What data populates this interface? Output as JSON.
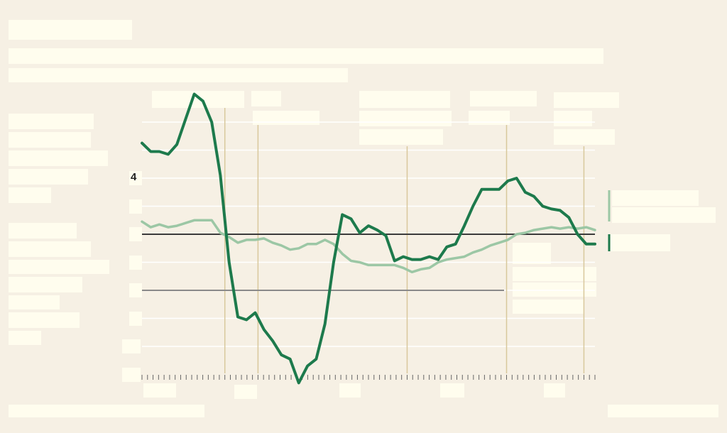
{
  "chart_data": {
    "type": "line",
    "yticks_visible": [
      {
        "value": 4,
        "label": "4"
      }
    ],
    "ylim": [
      -4.5,
      5.5
    ],
    "xlim": [
      0,
      82
    ],
    "reference_lines": [
      {
        "name": "zero-line",
        "y": 0
      },
      {
        "name": "secondary-line",
        "y": -2
      }
    ],
    "event_lines_x": [
      15,
      21,
      48,
      66,
      80
    ],
    "series": [
      {
        "color": "#1d7a4c",
        "values": [
          3.25,
          2.95,
          2.95,
          2.85,
          3.2,
          4.1,
          5.0,
          4.75,
          4.0,
          2.1,
          -1.0,
          -2.95,
          -3.05,
          -2.8,
          -3.4,
          -3.8,
          -4.3,
          -4.45,
          -5.3,
          -4.7,
          -4.45,
          -3.2,
          -1.0,
          0.7,
          0.55,
          0.05,
          0.3,
          0.15,
          -0.05,
          -0.95,
          -0.8,
          -0.9,
          -0.9,
          -0.8,
          -0.9,
          -0.45,
          -0.35,
          0.3,
          1.0,
          1.6,
          1.6,
          1.6,
          1.9,
          2.0,
          1.5,
          1.35,
          1.0,
          0.9,
          0.85,
          0.6,
          0.0,
          -0.35,
          -0.35
        ]
      },
      {
        "color": "#9cc7a5",
        "values": [
          0.45,
          0.25,
          0.35,
          0.25,
          0.3,
          0.4,
          0.5,
          0.5,
          0.5,
          0.05,
          -0.1,
          -0.3,
          -0.2,
          -0.2,
          -0.15,
          -0.3,
          -0.4,
          -0.55,
          -0.5,
          -0.35,
          -0.35,
          -0.2,
          -0.35,
          -0.7,
          -0.95,
          -1.0,
          -1.1,
          -1.1,
          -1.1,
          -1.1,
          -1.2,
          -1.35,
          -1.25,
          -1.2,
          -1.0,
          -0.9,
          -0.85,
          -0.8,
          -0.65,
          -0.55,
          -0.4,
          -0.3,
          -0.2,
          0.0,
          0.05,
          0.15,
          0.2,
          0.25,
          0.2,
          0.25,
          0.2,
          0.25,
          0.15
        ]
      }
    ],
    "colors": {
      "background": "#f6f0e4",
      "gridline": "#ffffff",
      "event_line": "#d8c89c",
      "zero_line": "#3b3b3b",
      "secondary_line": "#8a8a8a"
    }
  }
}
